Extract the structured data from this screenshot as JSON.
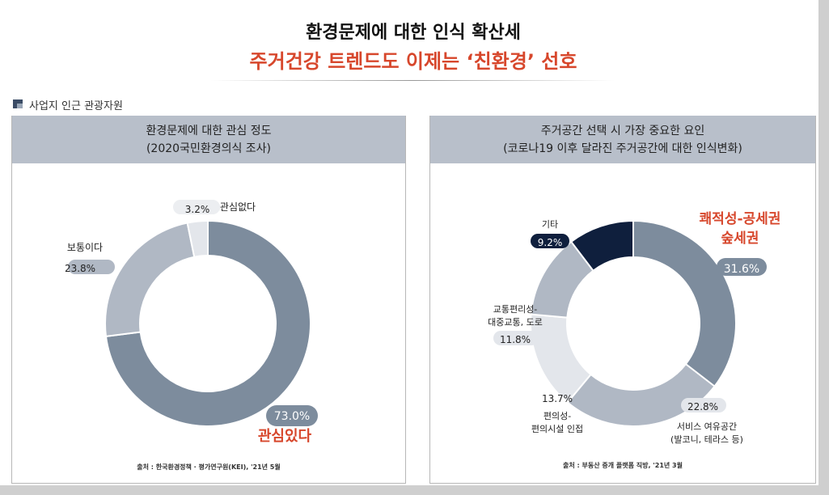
{
  "header": {
    "title_line1": "환경문제에 대한 인식 확산세",
    "title_line2": "주거건강 트렌드도 이제는 ‘친환경’ 선호",
    "section_label": "사업지 인근 관광자원"
  },
  "colors": {
    "accent_red": "#d7472c",
    "panel_header": "#b8bfca",
    "slice_dark_gray": "#7d8c9d",
    "slice_mid_gray": "#b0b8c4",
    "slice_light_gray": "#e3e6eb",
    "slice_navy": "#0f1f3d"
  },
  "chart_data": [
    {
      "type": "pie",
      "donut": true,
      "title": "환경문제에 대한 관심 정도",
      "subtitle": "(2020국민환경의식 조사)",
      "slices": [
        {
          "label": "관심있다",
          "value": 73.0,
          "value_label": "73.0%",
          "color": "#7d8c9d",
          "highlight": true
        },
        {
          "label": "보통이다",
          "value": 23.8,
          "value_label": "23.8%",
          "color": "#b0b8c4"
        },
        {
          "label": "관심없다",
          "value": 3.2,
          "value_label": "3.2%",
          "color": "#e3e6eb"
        }
      ],
      "source": "출처 : 한국환경정책 · 평가연구원(KEI), '21년 5월"
    },
    {
      "type": "pie",
      "donut": true,
      "title": "주거공간 선택 시 가장 중요한 요인",
      "subtitle": "(코로나19 이후 달라진 주거공간에 대한 인식변화)",
      "slices": [
        {
          "label": "쾌적성-공세권 숲세권",
          "label_lines": [
            "쾌적성-공세권",
            "숲세권"
          ],
          "value": 31.6,
          "value_label": "31.6%",
          "color": "#7d8c9d",
          "highlight": true
        },
        {
          "label": "서비스 여유공간 (발코니, 테라스 등)",
          "label_lines": [
            "서비스 여유공간",
            "(발코니, 테라스 등)"
          ],
          "value": 22.8,
          "value_label": "22.8%",
          "color": "#b0b8c4"
        },
        {
          "label": "편의성- 편의시설 인접",
          "label_lines": [
            "편의성-",
            "편의시설 인접"
          ],
          "value": 13.7,
          "value_label": "13.7%",
          "color": "#e3e6eb"
        },
        {
          "label": "교통편리성- 대중교통, 도로",
          "label_lines": [
            "교통편리성-",
            "대중교통, 도로"
          ],
          "value": 11.8,
          "value_label": "11.8%",
          "color": "#b0b8c4"
        },
        {
          "label": "기타",
          "label_lines": [
            "기타"
          ],
          "value": 9.2,
          "value_label": "9.2%",
          "color": "#0f1f3d"
        }
      ],
      "source": "출처 : 부동산 중개 플랫폼 직방, '21년 3월"
    }
  ]
}
